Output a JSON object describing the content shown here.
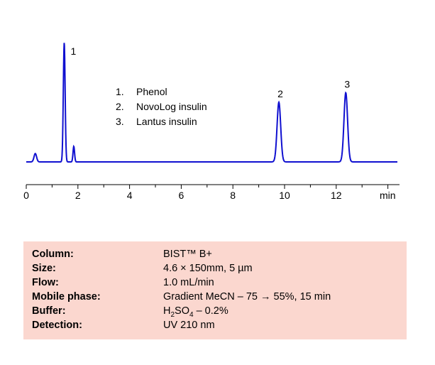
{
  "chart_data": {
    "type": "line",
    "x_unit": "min",
    "xlim": [
      0,
      14.5
    ],
    "x_ticks": [
      "0",
      "2",
      "4",
      "6",
      "8",
      "10",
      "12"
    ],
    "grid": false,
    "series": [
      {
        "color": "#1010d0",
        "peaks": [
          {
            "time": 0.35,
            "height": 0.07,
            "width": 0.05
          },
          {
            "time": 1.47,
            "height": 1.0,
            "width": 0.035
          },
          {
            "time": 1.84,
            "height": 0.13,
            "width": 0.03
          },
          {
            "time": 9.78,
            "height": 0.5,
            "width": 0.07
          },
          {
            "time": 12.37,
            "height": 0.58,
            "width": 0.07
          }
        ]
      }
    ],
    "peak_labels": [
      {
        "text": "1",
        "time": 1.47,
        "height": 1.0
      },
      {
        "text": "2",
        "time": 9.78,
        "height": 0.5
      },
      {
        "text": "3",
        "time": 12.37,
        "height": 0.58
      }
    ],
    "legend": [
      {
        "num": "1.",
        "name": "Phenol"
      },
      {
        "num": "2.",
        "name": "NovoLog insulin"
      },
      {
        "num": "3.",
        "name": "Lantus insulin"
      }
    ]
  },
  "conditions": [
    {
      "label": "Column:",
      "value": "BIST™ B+"
    },
    {
      "label": "Size:",
      "value": "4.6  × 150mm, 5 µm"
    },
    {
      "label": "Flow:",
      "value": "1.0  mL/min"
    },
    {
      "label": "Mobile phase:",
      "value": "Gradient MeCN – 75 → 55%, 15 min"
    },
    {
      "label": "Buffer:",
      "value_pre": "H",
      "value_sub1": "2",
      "value_mid": "SO",
      "value_sub2": "4",
      "value_post": " – 0.2%"
    },
    {
      "label": "Detection:",
      "value": "UV 210 nm"
    }
  ]
}
